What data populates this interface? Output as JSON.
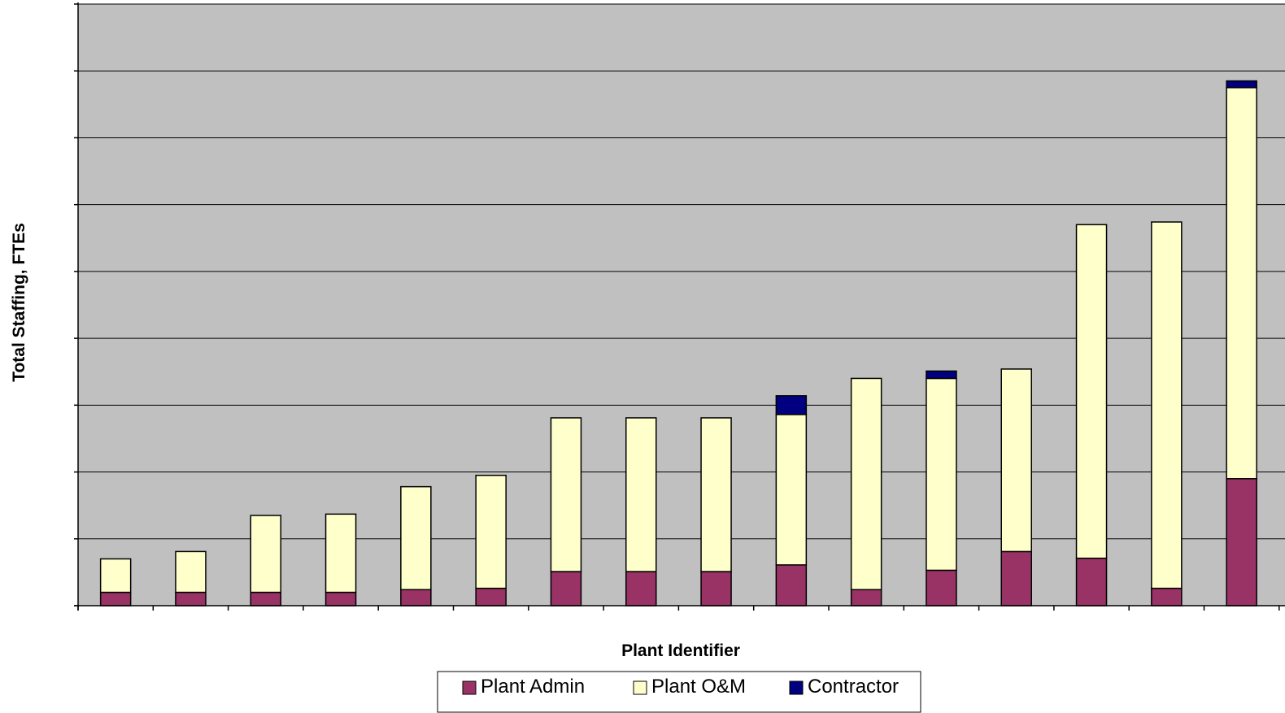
{
  "chart_data": {
    "type": "bar",
    "stacked": true,
    "xlabel": "Plant Identifier",
    "ylabel": "Total Staffing, FTEs",
    "ylim": [
      0,
      90
    ],
    "y_grid_step": 10,
    "grid": true,
    "legend_position": "bottom",
    "plot_background": "#C0C0C0",
    "categories": [
      "",
      "",
      "",
      "",
      "",
      "",
      "",
      "",
      "",
      "",
      "",
      "",
      "",
      "",
      "",
      ""
    ],
    "series": [
      {
        "name": "Plant Admin",
        "color": "#993366",
        "values": [
          2,
          2,
          2,
          2,
          2.4,
          2.6,
          5.1,
          5.1,
          5.1,
          6.1,
          2.4,
          5.3,
          8.1,
          7.1,
          2.6,
          19
        ]
      },
      {
        "name": "Plant O&M",
        "color": "#FFFFCC",
        "values": [
          5,
          6.1,
          11.5,
          11.7,
          15.4,
          16.9,
          23,
          23,
          23,
          22.5,
          31.6,
          28.7,
          27.3,
          49.9,
          54.8,
          58.5
        ]
      },
      {
        "name": "Contractor",
        "color": "#000080",
        "values": [
          0,
          0,
          0,
          0,
          0,
          0,
          0,
          0,
          0,
          2.8,
          0,
          1.1,
          0,
          0,
          0,
          1
        ]
      }
    ]
  }
}
